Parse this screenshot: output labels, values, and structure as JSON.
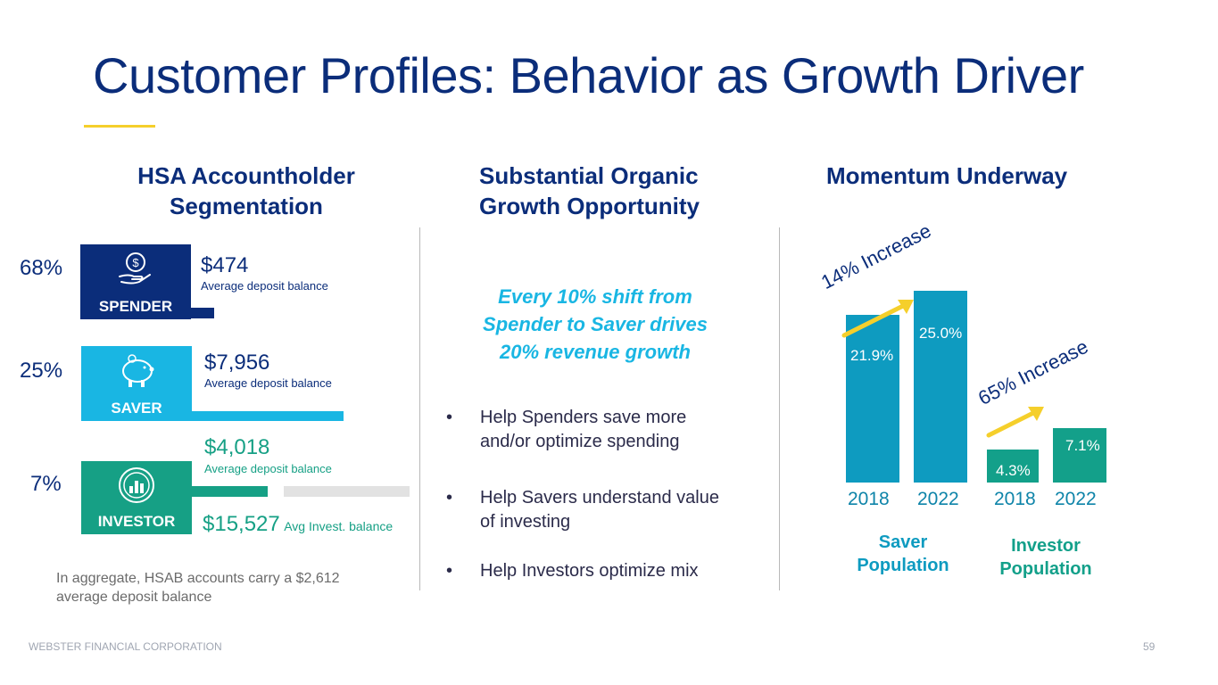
{
  "title": "Customer Profiles: Behavior as Growth Driver",
  "columns": {
    "left_heading": "HSA Accountholder Segmentation",
    "left_heading_line1": "HSA Accountholder",
    "left_heading_line2": "Segmentation",
    "middle_heading_line1": "Substantial Organic",
    "middle_heading_line2": "Growth Opportunity",
    "right_heading": "Momentum Underway"
  },
  "segments": [
    {
      "name": "SPENDER",
      "share": "68%",
      "amount": "$474",
      "amount_label": "Average deposit balance",
      "color": "#0b2d7a",
      "icon": "hand-dollar-icon"
    },
    {
      "name": "SAVER",
      "share": "25%",
      "amount": "$7,956",
      "amount_label": "Average deposit balance",
      "color": "#19b6e3",
      "icon": "piggy-bank-icon"
    },
    {
      "name": "INVESTOR",
      "share": "7%",
      "amount": "$4,018",
      "amount_label": "Average deposit balance",
      "invest_amount": "$15,527",
      "invest_label": "Avg Invest. balance",
      "color": "#16a085",
      "icon": "investment-chart-icon"
    }
  ],
  "aggregate_note_line1": "In aggregate, HSAB accounts carry a $2,612",
  "aggregate_note_line2": "average deposit balance",
  "callout_line1": "Every 10% shift from",
  "callout_line2": "Spender to Saver drives",
  "callout_line3": "20% revenue growth",
  "bullets": [
    {
      "line1": "Help Spenders save more",
      "line2": "and/or optimize spending"
    },
    {
      "line1": "Help Savers understand value",
      "line2": "of investing"
    },
    {
      "line1": "Help Investors optimize mix",
      "line2": ""
    }
  ],
  "chart_data": {
    "type": "bar",
    "groups": [
      {
        "name": "Saver Population",
        "name_line1": "Saver",
        "name_line2": "Population",
        "increase_label": "14% Increase",
        "categories": [
          "2018",
          "2022"
        ],
        "values": [
          21.9,
          25.0
        ],
        "labels": [
          "21.9%",
          "25.0%"
        ],
        "color": "#0e9bc0"
      },
      {
        "name": "Investor Population",
        "name_line1": "Investor",
        "name_line2": "Population",
        "increase_label": "65% Increase",
        "categories": [
          "2018",
          "2022"
        ],
        "values": [
          4.3,
          7.1
        ],
        "labels": [
          "4.3%",
          "7.1%"
        ],
        "color": "#13a08a"
      }
    ]
  },
  "footer": {
    "company": "WEBSTER FINANCIAL CORPORATION",
    "page_number": "59"
  }
}
